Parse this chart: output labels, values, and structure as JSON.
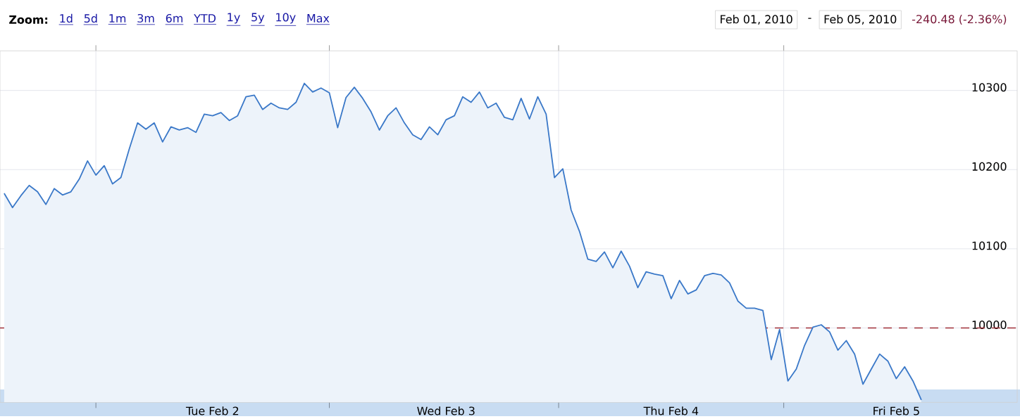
{
  "chart_data": {
    "type": "area",
    "annotations": [
      "Zoom:",
      "1d",
      "5d",
      "1m",
      "3m",
      "6m",
      "YTD",
      "1y",
      "5y",
      "10y",
      "Max",
      "Feb 01, 2010",
      "-",
      "Feb 05, 2010",
      "-240.48 (-2.36%)"
    ],
    "categories": [
      null,
      null,
      null,
      null,
      null,
      null,
      null,
      null,
      null,
      null,
      null,
      null,
      null,
      null,
      null,
      null,
      null,
      null,
      null,
      null,
      null,
      null,
      null,
      null,
      null,
      "Tue Feb 2",
      null,
      null,
      null,
      null,
      null,
      null,
      null,
      null,
      null,
      null,
      null,
      null,
      null,
      null,
      null,
      null,
      null,
      null,
      null,
      null,
      null,
      null,
      null,
      null,
      null,
      null,
      null,
      "Wed Feb 3",
      null,
      null,
      null,
      null,
      null,
      null,
      null,
      null,
      null,
      null,
      null,
      null,
      null,
      null,
      null,
      null,
      null,
      null,
      null,
      null,
      null,
      null,
      null,
      null,
      null,
      null,
      "Thu Feb 4",
      null,
      null,
      null,
      null,
      null,
      null,
      null,
      null,
      null,
      null,
      null,
      null,
      null,
      null,
      null,
      null,
      null,
      null,
      null,
      null,
      null,
      null,
      null,
      null,
      null,
      null,
      "Fri Feb 5",
      null,
      null,
      null,
      null,
      null,
      null,
      null,
      null,
      null,
      null,
      null,
      null,
      null,
      null
    ],
    "series": [
      {
        "color": "#3a78c8",
        "values": [
          10170,
          10152,
          10167,
          10180,
          10172,
          10156,
          10176,
          10168,
          10172,
          10188,
          10211,
          10193,
          10205,
          10182,
          10190,
          10226,
          10259,
          10251,
          10259,
          10235,
          10254,
          10250,
          10253,
          10247,
          10270,
          10268,
          10272,
          10262,
          10268,
          10292,
          10294,
          10276,
          10284,
          10278,
          10276,
          10285,
          10309,
          10298,
          10303,
          10297,
          10253,
          10291,
          10304,
          10290,
          10273,
          10250,
          10268,
          10278,
          10259,
          10244,
          10238,
          10254,
          10244,
          10263,
          10268,
          10292,
          10285,
          10298,
          10278,
          10284,
          10266,
          10263,
          10290,
          10264,
          10292,
          10270,
          10190,
          10201,
          10149,
          10122,
          10087,
          10084,
          10096,
          10076,
          10097,
          10078,
          10051,
          10071,
          10068,
          10066,
          10037,
          10060,
          10043,
          10048,
          10066,
          10069,
          10067,
          10057,
          10034,
          10025,
          10025,
          10022,
          9960,
          9998,
          9933,
          9948,
          9978,
          10001,
          10004,
          9995,
          9972,
          9984,
          9967,
          9929,
          9948,
          9967,
          9958,
          9936,
          9951,
          9933,
          9909,
          null,
          null,
          null,
          null,
          null,
          null,
          null,
          null,
          null,
          null,
          null
        ]
      }
    ],
    "ylim": [
      9906,
      10350
    ],
    "yticks": [
      10000,
      10100,
      10200,
      10300
    ],
    "grid": true,
    "ref_lines": [
      {
        "axis": "y",
        "value": 10000,
        "color": "#a0303a",
        "line_style": "dashed"
      }
    ]
  }
}
